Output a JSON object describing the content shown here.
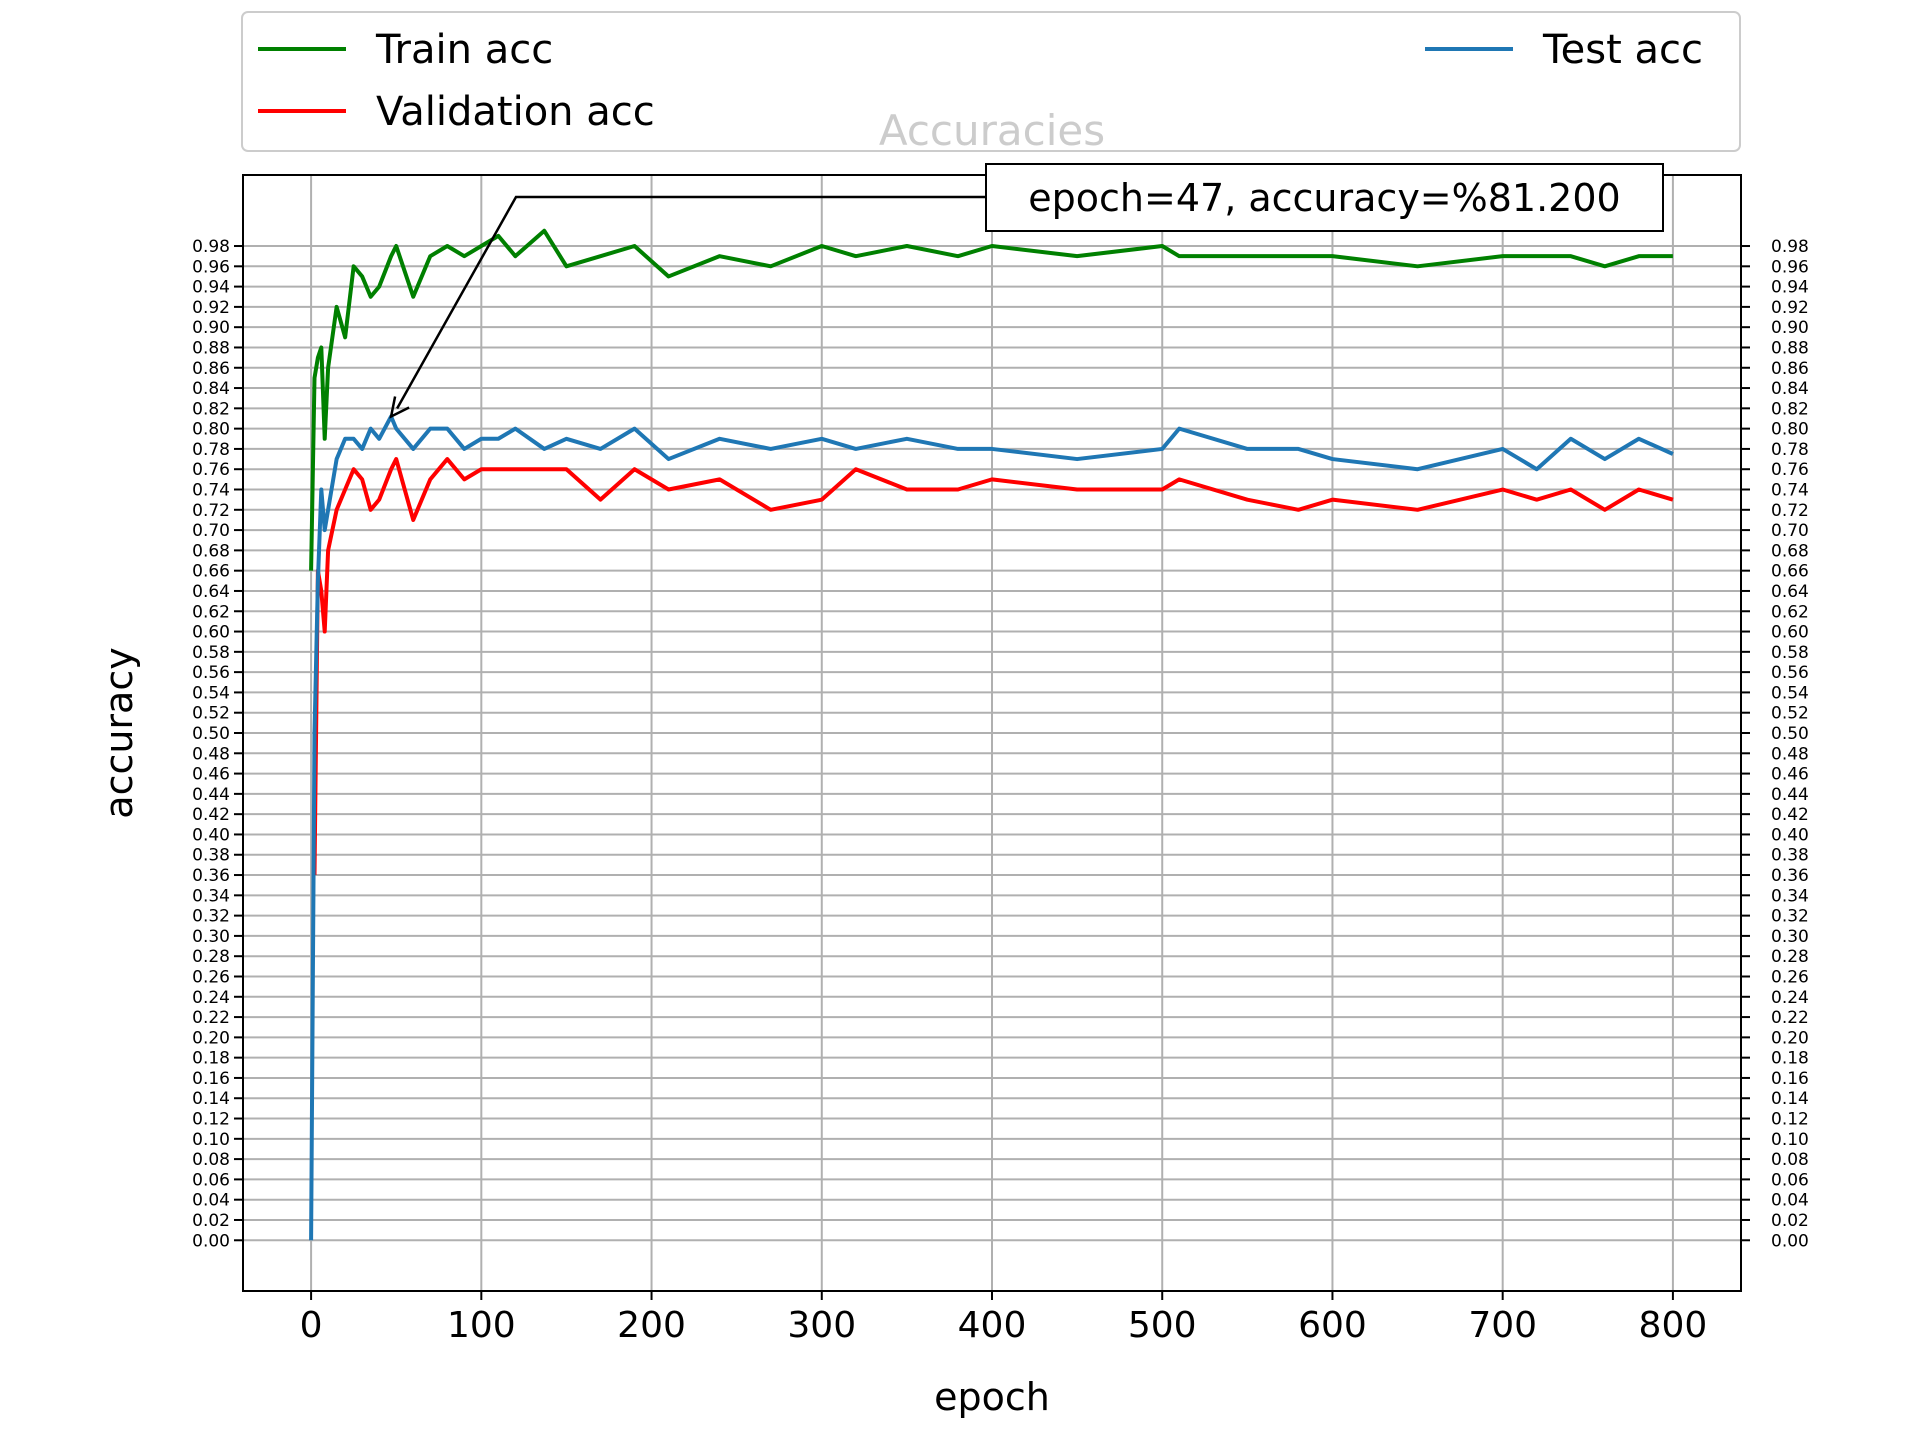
{
  "chart_data": {
    "type": "line",
    "title": "Accuracies",
    "x_label": "epoch",
    "y_label": "accuracy",
    "x": [
      0,
      2,
      4,
      6,
      8,
      10,
      15,
      20,
      25,
      30,
      35,
      40,
      47,
      50,
      60,
      70,
      80,
      90,
      100,
      110,
      120,
      137,
      150,
      170,
      190,
      210,
      240,
      270,
      300,
      320,
      350,
      380,
      400,
      450,
      500,
      510,
      550,
      580,
      600,
      650,
      700,
      720,
      740,
      760,
      780,
      800
    ],
    "series": [
      {
        "name": "Train acc",
        "color": "#008000",
        "values": [
          0.66,
          0.85,
          0.87,
          0.88,
          0.79,
          0.86,
          0.92,
          0.89,
          0.96,
          0.95,
          0.93,
          0.94,
          0.97,
          0.98,
          0.93,
          0.97,
          0.98,
          0.97,
          0.98,
          0.99,
          0.97,
          0.995,
          0.96,
          0.97,
          0.98,
          0.95,
          0.97,
          0.96,
          0.98,
          0.97,
          0.98,
          0.97,
          0.98,
          0.97,
          0.98,
          0.97,
          0.97,
          0.97,
          0.97,
          0.96,
          0.97,
          0.97,
          0.97,
          0.96,
          0.97,
          0.97
        ]
      },
      {
        "name": "Validation acc",
        "color": "#ff0000",
        "values": [
          null,
          0.36,
          0.66,
          0.64,
          0.6,
          0.68,
          0.72,
          0.74,
          0.76,
          0.75,
          0.72,
          0.73,
          0.76,
          0.77,
          0.71,
          0.75,
          0.77,
          0.75,
          0.76,
          0.76,
          0.76,
          0.76,
          0.76,
          0.73,
          0.76,
          0.74,
          0.75,
          0.72,
          0.73,
          0.76,
          0.74,
          0.74,
          0.75,
          0.74,
          0.74,
          0.75,
          0.73,
          0.72,
          0.73,
          0.72,
          0.74,
          0.73,
          0.74,
          0.72,
          0.74,
          0.73
        ]
      },
      {
        "name": "Test acc",
        "color": "#1f77b4",
        "values": [
          0,
          0.5,
          0.65,
          0.74,
          0.7,
          0.72,
          0.77,
          0.79,
          0.79,
          0.78,
          0.8,
          0.79,
          0.812,
          0.8,
          0.78,
          0.8,
          0.8,
          0.78,
          0.79,
          0.79,
          0.8,
          0.78,
          0.79,
          0.78,
          0.8,
          0.77,
          0.79,
          0.78,
          0.79,
          0.78,
          0.79,
          0.78,
          0.78,
          0.77,
          0.78,
          0.8,
          0.78,
          0.78,
          0.77,
          0.76,
          0.78,
          0.76,
          0.79,
          0.77,
          0.79,
          0.775
        ]
      }
    ],
    "annotation": {
      "text": "epoch=47, accuracy=%81.200",
      "x": 47,
      "y": 0.812
    },
    "xlim": [
      -40,
      840
    ],
    "ylim": [
      -0.05,
      1.05
    ],
    "xticks": [
      0,
      100,
      200,
      300,
      400,
      500,
      600,
      700,
      800
    ],
    "yticks": [
      {
        "value": 0,
        "label": "0.00"
      },
      {
        "value": 0.02,
        "label": "0.02"
      },
      {
        "value": 0.04,
        "label": "0.04"
      },
      {
        "value": 0.06,
        "label": "0.06"
      },
      {
        "value": 0.08,
        "label": "0.08"
      },
      {
        "value": 0.1,
        "label": "0.10"
      },
      {
        "value": 0.12,
        "label": "0.12"
      },
      {
        "value": 0.14,
        "label": "0.14"
      },
      {
        "value": 0.16,
        "label": "0.16"
      },
      {
        "value": 0.18,
        "label": "0.18"
      },
      {
        "value": 0.2,
        "label": "0.20"
      },
      {
        "value": 0.22,
        "label": "0.22"
      },
      {
        "value": 0.24,
        "label": "0.24"
      },
      {
        "value": 0.26,
        "label": "0.26"
      },
      {
        "value": 0.28,
        "label": "0.28"
      },
      {
        "value": 0.3,
        "label": "0.30"
      },
      {
        "value": 0.32,
        "label": "0.32"
      },
      {
        "value": 0.34,
        "label": "0.34"
      },
      {
        "value": 0.36,
        "label": "0.36"
      },
      {
        "value": 0.38,
        "label": "0.38"
      },
      {
        "value": 0.4,
        "label": "0.40"
      },
      {
        "value": 0.42,
        "label": "0.42"
      },
      {
        "value": 0.44,
        "label": "0.44"
      },
      {
        "value": 0.46,
        "label": "0.46"
      },
      {
        "value": 0.48,
        "label": "0.48"
      },
      {
        "value": 0.5,
        "label": "0.50"
      },
      {
        "value": 0.52,
        "label": "0.52"
      },
      {
        "value": 0.54,
        "label": "0.54"
      },
      {
        "value": 0.56,
        "label": "0.56"
      },
      {
        "value": 0.58,
        "label": "0.58"
      },
      {
        "value": 0.6,
        "label": "0.60"
      },
      {
        "value": 0.62,
        "label": "0.62"
      },
      {
        "value": 0.64,
        "label": "0.64"
      },
      {
        "value": 0.66,
        "label": "0.66"
      },
      {
        "value": 0.68,
        "label": "0.68"
      },
      {
        "value": 0.7,
        "label": "0.70"
      },
      {
        "value": 0.72,
        "label": "0.72"
      },
      {
        "value": 0.74,
        "label": "0.74"
      },
      {
        "value": 0.76,
        "label": "0.76"
      },
      {
        "value": 0.78,
        "label": "0.78"
      },
      {
        "value": 0.8,
        "label": "0.80"
      },
      {
        "value": 0.82,
        "label": "0.82"
      },
      {
        "value": 0.84,
        "label": "0.84"
      },
      {
        "value": 0.86,
        "label": "0.86"
      },
      {
        "value": 0.88,
        "label": "0.88"
      },
      {
        "value": 0.9,
        "label": "0.90"
      },
      {
        "value": 0.92,
        "label": "0.92"
      },
      {
        "value": 0.94,
        "label": "0.94"
      },
      {
        "value": 0.96,
        "label": "0.96"
      },
      {
        "value": 0.98,
        "label": "0.98"
      }
    ],
    "grid": true,
    "legend": "upper center"
  }
}
